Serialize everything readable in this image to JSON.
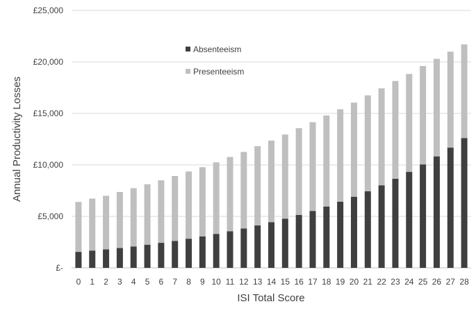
{
  "chart_data": {
    "type": "bar",
    "stacked": true,
    "title": "",
    "xlabel": "ISI Total Score",
    "ylabel": "Annual Productivity Losses",
    "ylim": [
      0,
      25000
    ],
    "yticks": [
      0,
      5000,
      10000,
      15000,
      20000,
      25000
    ],
    "ytick_labels": [
      "£-",
      "£5,000",
      "£10,000",
      "£15,000",
      "£20,000",
      "£25,000"
    ],
    "grid": true,
    "legend_position": "top-left",
    "categories": [
      "0",
      "1",
      "2",
      "3",
      "4",
      "5",
      "6",
      "7",
      "8",
      "9",
      "10",
      "11",
      "12",
      "13",
      "14",
      "15",
      "16",
      "17",
      "18",
      "19",
      "20",
      "21",
      "22",
      "23",
      "24",
      "25",
      "26",
      "27",
      "28"
    ],
    "series": [
      {
        "name": "Absenteeism",
        "color": "#3f3f3f",
        "values": [
          1550,
          1680,
          1800,
          1930,
          2080,
          2250,
          2430,
          2620,
          2830,
          3060,
          3300,
          3550,
          3820,
          4120,
          4440,
          4780,
          5140,
          5530,
          5960,
          6420,
          6910,
          7440,
          8020,
          8650,
          9320,
          10050,
          10830,
          11680,
          12600
        ]
      },
      {
        "name": "Presenteeism",
        "color": "#bfbfbf",
        "values": [
          4850,
          5050,
          5200,
          5440,
          5660,
          5870,
          6070,
          6300,
          6530,
          6720,
          6950,
          7220,
          7440,
          7700,
          7920,
          8170,
          8430,
          8620,
          8840,
          8980,
          9140,
          9310,
          9410,
          9500,
          9510,
          9550,
          9470,
          9320,
          9100
        ]
      }
    ]
  }
}
